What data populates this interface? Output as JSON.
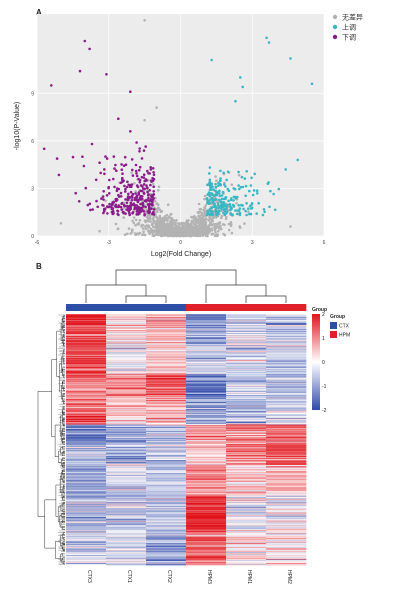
{
  "panels": {
    "a": "A",
    "b": "B"
  },
  "chart_data": [
    {
      "type": "scatter",
      "xlabel": "Log2(Fold Change)",
      "ylabel": "-log10(P-Value)",
      "xlim": [
        -6,
        6
      ],
      "ylim": [
        0,
        14
      ],
      "xticks": [
        -6,
        -3,
        0,
        3,
        6
      ],
      "yticks": [
        0,
        3,
        6,
        9
      ],
      "grid": true,
      "legend_position": "top-right",
      "series": [
        {
          "name": "无差异",
          "color": "#b3b3b3",
          "count": 1400
        },
        {
          "name": "上调",
          "color": "#3bb7c3",
          "count": 220
        },
        {
          "name": "下调",
          "color": "#8b1d8b",
          "count": 300
        }
      ],
      "notable_points": {
        "up": [
          [
            3.6,
            12.5
          ],
          [
            3.7,
            12.2
          ],
          [
            1.3,
            11.1
          ],
          [
            4.6,
            11.2
          ],
          [
            5.5,
            9.6
          ],
          [
            2.5,
            10.0
          ],
          [
            2.6,
            9.4
          ],
          [
            2.3,
            8.5
          ],
          [
            4.9,
            4.8
          ],
          [
            4.4,
            4.2
          ]
        ],
        "down": [
          [
            -4.0,
            12.3
          ],
          [
            -3.8,
            11.8
          ],
          [
            -4.2,
            10.4
          ],
          [
            -3.1,
            10.2
          ],
          [
            -5.4,
            9.5
          ],
          [
            -2.1,
            9.1
          ],
          [
            -5.7,
            5.5
          ],
          [
            -2.6,
            7.4
          ],
          [
            -2.1,
            6.6
          ],
          [
            -3.7,
            5.8
          ],
          [
            -4.1,
            5.0
          ]
        ],
        "ns": [
          [
            -1.5,
            13.6
          ],
          [
            -1.0,
            8.1
          ],
          [
            -1.5,
            7.3
          ],
          [
            -5.0,
            0.8
          ],
          [
            4.6,
            0.6
          ],
          [
            -0.9,
            3.1
          ]
        ]
      }
    },
    {
      "type": "heatmap",
      "columns": [
        "CTX3",
        "CTX1",
        "CTX2",
        "HPM3",
        "HPM1",
        "HPM2"
      ],
      "column_groups": [
        "CTX",
        "CTX",
        "CTX",
        "HPM",
        "HPM",
        "HPM"
      ],
      "group_legend_title": "Group",
      "group_legend": [
        {
          "name": "CTX",
          "color": "#2b50a6"
        },
        {
          "name": "HPM",
          "color": "#e0202a"
        }
      ],
      "color_scale": {
        "min": -2,
        "max": 2,
        "ticks": [
          2,
          1,
          0,
          -1,
          -2
        ],
        "low": "#2f48a8",
        "mid": "#ffffff",
        "high": "#e1141c"
      },
      "rows": 500,
      "blocks": [
        {
          "rows": 60,
          "means": [
            1.8,
            0.3,
            0.6,
            -1.2,
            -0.4,
            -0.5
          ]
        },
        {
          "rows": 60,
          "means": [
            1.6,
            -0.2,
            0.3,
            -0.4,
            -0.5,
            -0.6
          ]
        },
        {
          "rows": 50,
          "means": [
            1.1,
            1.0,
            1.4,
            -1.5,
            -0.6,
            -0.7
          ]
        },
        {
          "rows": 50,
          "means": [
            1.3,
            0.5,
            0.7,
            -0.9,
            -0.7,
            -0.3
          ]
        },
        {
          "rows": 40,
          "means": [
            -1.4,
            -0.9,
            -0.8,
            0.9,
            1.1,
            1.2
          ]
        },
        {
          "rows": 40,
          "means": [
            -0.6,
            -1.0,
            -0.5,
            0.4,
            1.2,
            1.5
          ]
        },
        {
          "rows": 60,
          "means": [
            -1.0,
            -0.5,
            -0.6,
            1.0,
            0.4,
            0.5
          ]
        },
        {
          "rows": 70,
          "means": [
            -0.8,
            -0.6,
            -0.7,
            1.9,
            -0.2,
            -0.1
          ]
        },
        {
          "rows": 70,
          "means": [
            -0.5,
            -0.3,
            -0.9,
            1.3,
            0.2,
            0.1
          ]
        }
      ]
    }
  ]
}
